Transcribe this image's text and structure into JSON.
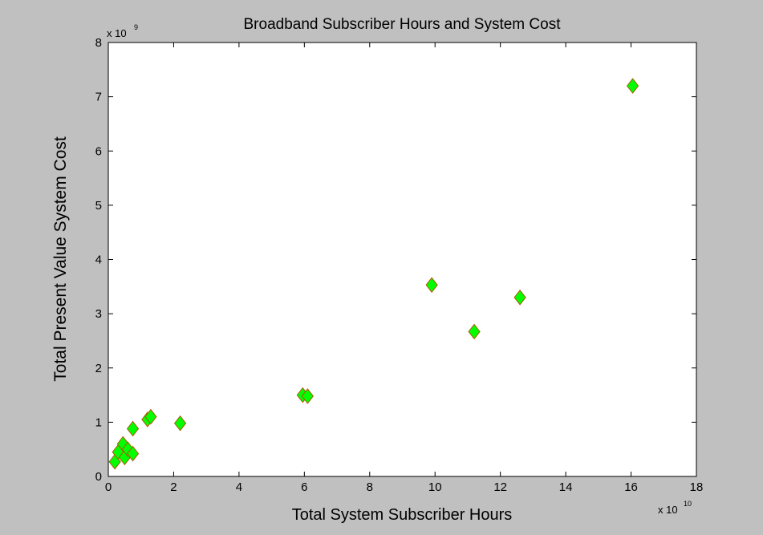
{
  "chart_data": {
    "type": "scatter",
    "title": "Broadband Subscriber Hours and System Cost",
    "xlabel": "Total System Subscriber Hours",
    "ylabel": "Total Present Value System Cost",
    "x_exponent_label": "x 10",
    "x_exponent_power": "10",
    "y_exponent_label": "x 10",
    "y_exponent_power": "9",
    "xlim": [
      0,
      18
    ],
    "ylim": [
      0,
      8
    ],
    "xticks": [
      0,
      2,
      4,
      6,
      8,
      10,
      12,
      14,
      16,
      18
    ],
    "yticks": [
      0,
      1,
      2,
      3,
      4,
      5,
      6,
      7,
      8
    ],
    "x_unit_scale": 10000000000.0,
    "y_unit_scale": 1000000000.0,
    "grid": false,
    "marker": "diamond",
    "marker_color": "#00ff00",
    "marker_edge_color": "#b05a00",
    "points": [
      {
        "x": 0.2,
        "y": 0.27
      },
      {
        "x": 0.3,
        "y": 0.45
      },
      {
        "x": 0.45,
        "y": 0.6
      },
      {
        "x": 0.5,
        "y": 0.35
      },
      {
        "x": 0.6,
        "y": 0.5
      },
      {
        "x": 0.75,
        "y": 0.42
      },
      {
        "x": 0.75,
        "y": 0.88
      },
      {
        "x": 1.2,
        "y": 1.05
      },
      {
        "x": 1.3,
        "y": 1.1
      },
      {
        "x": 2.2,
        "y": 0.98
      },
      {
        "x": 5.95,
        "y": 1.5
      },
      {
        "x": 6.1,
        "y": 1.48
      },
      {
        "x": 9.9,
        "y": 3.53
      },
      {
        "x": 11.2,
        "y": 2.67
      },
      {
        "x": 12.6,
        "y": 3.3
      },
      {
        "x": 16.05,
        "y": 7.2
      }
    ]
  }
}
